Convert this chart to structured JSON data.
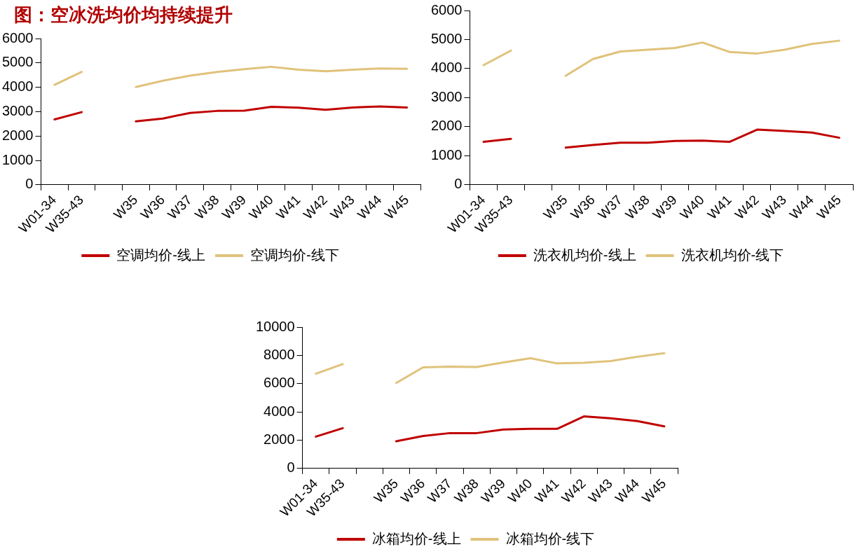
{
  "chart_data": [
    {
      "type": "line",
      "title": "图：空冰洗均价均持续提升",
      "categories": [
        "W01-34",
        "W35-43",
        null,
        "W35",
        "W36",
        "W37",
        "W38",
        "W39",
        "W40",
        "W41",
        "W42",
        "W43",
        "W44",
        "W45"
      ],
      "ylim": [
        0,
        6000
      ],
      "yticks": [
        0,
        1000,
        2000,
        3000,
        4000,
        5000,
        6000
      ],
      "legend": "bottom",
      "marker": "none",
      "series": [
        {
          "name": "空调均价-线上",
          "color": "#c00000",
          "values": [
            2680,
            2980,
            null,
            2600,
            2720,
            2950,
            3030,
            3040,
            3200,
            3160,
            3080,
            3170,
            3210,
            3170
          ]
        },
        {
          "name": "空调均价-线下",
          "color": "#e0c27a",
          "values": [
            4100,
            4630,
            null,
            4010,
            4270,
            4480,
            4630,
            4740,
            4840,
            4720,
            4660,
            4720,
            4770,
            4760
          ]
        }
      ]
    },
    {
      "type": "line",
      "categories": [
        "W01-34",
        "W35-43",
        null,
        "W35",
        "W36",
        "W37",
        "W38",
        "W39",
        "W40",
        "W41",
        "W42",
        "W43",
        "W44",
        "W45"
      ],
      "ylim": [
        0,
        6000
      ],
      "yticks": [
        0,
        1000,
        2000,
        3000,
        4000,
        5000,
        6000
      ],
      "legend": "bottom",
      "marker": "none",
      "series": [
        {
          "name": "洗衣机均价-线上",
          "color": "#c00000",
          "values": [
            1480,
            1580,
            null,
            1280,
            1370,
            1450,
            1450,
            1510,
            1520,
            1480,
            1900,
            1850,
            1800,
            1620
          ]
        },
        {
          "name": "洗衣机均价-线下",
          "color": "#e0c27a",
          "values": [
            4120,
            4620,
            null,
            3750,
            4330,
            4590,
            4650,
            4710,
            4900,
            4570,
            4520,
            4650,
            4850,
            4960
          ]
        }
      ]
    },
    {
      "type": "line",
      "categories": [
        "W01-34",
        "W35-43",
        null,
        "W35",
        "W36",
        "W37",
        "W38",
        "W39",
        "W40",
        "W41",
        "W42",
        "W43",
        "W44",
        "W45"
      ],
      "ylim": [
        0,
        10000
      ],
      "yticks": [
        0,
        2000,
        4000,
        6000,
        8000,
        10000
      ],
      "legend": "bottom",
      "marker": "none",
      "series": [
        {
          "name": "冰箱均价-线上",
          "color": "#c00000",
          "values": [
            2250,
            2850,
            null,
            1920,
            2300,
            2500,
            2500,
            2750,
            2800,
            2800,
            3680,
            3550,
            3350,
            2980
          ]
        },
        {
          "name": "冰箱均价-线下",
          "color": "#e0c27a",
          "values": [
            6700,
            7380,
            null,
            6050,
            7150,
            7200,
            7180,
            7500,
            7800,
            7430,
            7470,
            7600,
            7900,
            8150
          ]
        }
      ]
    }
  ]
}
